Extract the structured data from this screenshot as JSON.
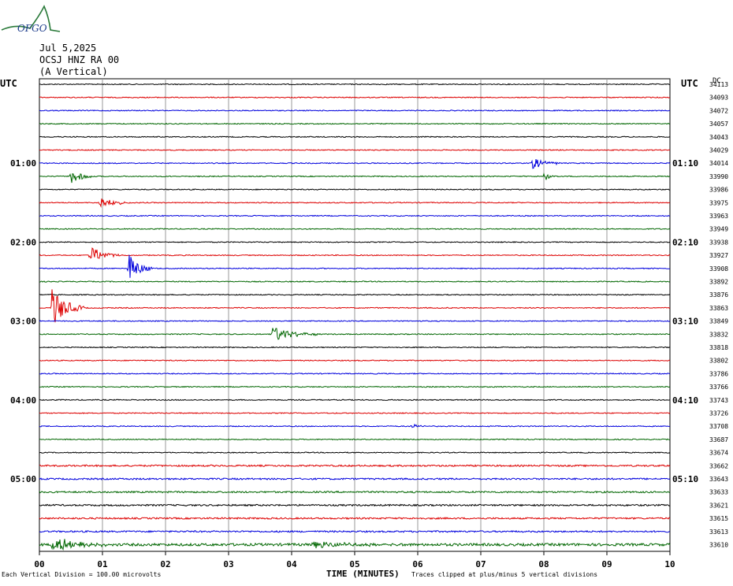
{
  "logo": {
    "text": "OFGO"
  },
  "header": {
    "date": "Jul 5,2025",
    "station": "OCSJ HNZ RA 00",
    "component": "(A Vertical)"
  },
  "axis_labels": {
    "left_utc": "UTC",
    "right_utc": "UTC",
    "right_dc": "DC"
  },
  "footer": {
    "scale_note": "Each Vertical Division =  100.00 microvolts",
    "xlabel": "TIME (MINUTES)",
    "clip_note": "Traces clipped at plus/minus 5 vertical divisions"
  },
  "colors": {
    "trace_cycle": [
      "#000000",
      "#dd0000",
      "#0000dd",
      "#006600"
    ],
    "grid": "#999999"
  },
  "chart_data": {
    "type": "line",
    "title": "",
    "xlabel": "TIME (MINUTES)",
    "xlim": [
      0,
      10
    ],
    "x_ticks": [
      "00",
      "01",
      "02",
      "03",
      "04",
      "05",
      "06",
      "07",
      "08",
      "09",
      "10"
    ],
    "row_count": 36,
    "left_time_labels": [
      {
        "row": 6,
        "text": "01:00"
      },
      {
        "row": 12,
        "text": "02:00"
      },
      {
        "row": 18,
        "text": "03:00"
      },
      {
        "row": 24,
        "text": "04:00"
      },
      {
        "row": 30,
        "text": "05:00"
      }
    ],
    "right_time_labels": [
      {
        "row": 6,
        "text": "01:10"
      },
      {
        "row": 12,
        "text": "02:10"
      },
      {
        "row": 18,
        "text": "03:10"
      },
      {
        "row": 24,
        "text": "04:10"
      },
      {
        "row": 30,
        "text": "05:10"
      }
    ],
    "row_dc_counts": [
      "34113",
      "34093",
      "34072",
      "34057",
      "34043",
      "34029",
      "34014",
      "33990",
      "33986",
      "33975",
      "33963",
      "33949",
      "33938",
      "33927",
      "33908",
      "33892",
      "33876",
      "33863",
      "33849",
      "33832",
      "33818",
      "33802",
      "33786",
      "33766",
      "33743",
      "33726",
      "33708",
      "33687",
      "33674",
      "33662",
      "33643",
      "33633",
      "33621",
      "33615",
      "33613",
      "33610"
    ],
    "events": [
      {
        "row": 6,
        "minute": 7.8,
        "amplitude": 8,
        "duration": 0.2
      },
      {
        "row": 7,
        "minute": 0.5,
        "amplitude": 11,
        "duration": 0.15
      },
      {
        "row": 7,
        "minute": 8.0,
        "amplitude": 6,
        "duration": 0.1
      },
      {
        "row": 9,
        "minute": 0.95,
        "amplitude": 9,
        "duration": 0.2
      },
      {
        "row": 13,
        "minute": 0.8,
        "amplitude": 12,
        "duration": 0.2
      },
      {
        "row": 14,
        "minute": 1.42,
        "amplitude": 20,
        "duration": 0.15
      },
      {
        "row": 17,
        "minute": 0.2,
        "amplitude": 26,
        "duration": 0.2
      },
      {
        "row": 19,
        "minute": 3.7,
        "amplitude": 10,
        "duration": 0.3
      },
      {
        "row": 26,
        "minute": 5.9,
        "amplitude": 4,
        "duration": 0.1
      },
      {
        "row": 35,
        "minute": 0.2,
        "amplitude": 10,
        "duration": 0.4
      },
      {
        "row": 35,
        "minute": 4.3,
        "amplitude": 4,
        "duration": 0.6
      }
    ]
  }
}
